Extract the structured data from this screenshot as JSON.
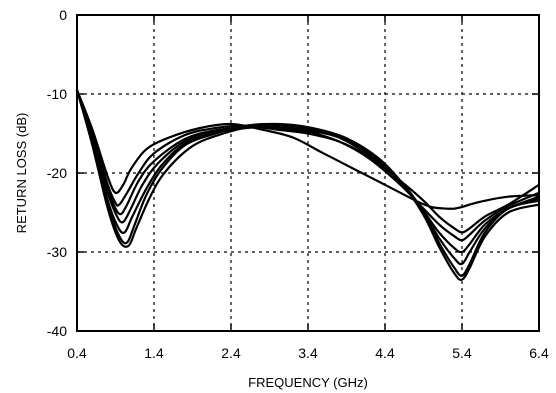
{
  "chart_data": {
    "type": "line",
    "xlabel": "FREQUENCY (GHz)",
    "ylabel": "RETURN LOSS (dB)",
    "xlim": [
      0.4,
      6.4
    ],
    "ylim": [
      -40,
      0
    ],
    "xticks": [
      "0.4",
      "1.4",
      "2.4",
      "3.4",
      "4.4",
      "5.4",
      "6.4"
    ],
    "yticks": [
      "0",
      "-10",
      "-20",
      "-30",
      "-40"
    ],
    "grid": "dashed",
    "series": [
      {
        "x": [
          0.4,
          0.6,
          0.8,
          0.9,
          1.0,
          1.1,
          1.3,
          1.6,
          2.0,
          2.4,
          2.8,
          3.2,
          3.6,
          4.0,
          4.4,
          4.8,
          5.0,
          5.2,
          5.3,
          5.4,
          5.5,
          5.7,
          6.0,
          6.4
        ],
        "y": [
          -9.5,
          -14.5,
          -20.5,
          -22.5,
          -21.5,
          -19.5,
          -17.0,
          -15.5,
          -14.3,
          -13.8,
          -14.5,
          -15.5,
          -17.5,
          -19.5,
          -21.5,
          -23.5,
          -24.3,
          -24.5,
          -24.5,
          -24.3,
          -24.0,
          -23.5,
          -23.0,
          -22.8
        ]
      },
      {
        "x": [
          0.4,
          0.6,
          0.8,
          0.9,
          0.95,
          1.05,
          1.2,
          1.4,
          1.8,
          2.2,
          2.6,
          3.0,
          3.4,
          3.8,
          4.2,
          4.6,
          4.9,
          5.1,
          5.3,
          5.4,
          5.5,
          5.7,
          6.0,
          6.4
        ],
        "y": [
          -9.5,
          -15.0,
          -21.5,
          -23.8,
          -24.0,
          -22.5,
          -20.0,
          -17.5,
          -15.2,
          -14.3,
          -14.0,
          -14.5,
          -15.0,
          -16.0,
          -18.0,
          -21.0,
          -23.5,
          -25.5,
          -27.0,
          -27.5,
          -27.0,
          -25.5,
          -24.0,
          -21.5
        ]
      },
      {
        "x": [
          0.4,
          0.6,
          0.8,
          0.9,
          0.97,
          1.05,
          1.2,
          1.4,
          1.8,
          2.2,
          2.6,
          3.0,
          3.4,
          3.8,
          4.2,
          4.6,
          4.9,
          5.1,
          5.3,
          5.4,
          5.5,
          5.7,
          6.0,
          6.4
        ],
        "y": [
          -9.5,
          -15.5,
          -22.0,
          -24.5,
          -25.2,
          -24.0,
          -21.0,
          -18.5,
          -15.7,
          -14.6,
          -14.2,
          -14.4,
          -14.8,
          -16.0,
          -18.2,
          -21.5,
          -24.5,
          -26.5,
          -28.0,
          -28.5,
          -27.8,
          -26.0,
          -24.2,
          -22.5
        ]
      },
      {
        "x": [
          0.4,
          0.6,
          0.8,
          0.92,
          1.0,
          1.1,
          1.25,
          1.45,
          1.8,
          2.2,
          2.6,
          3.0,
          3.4,
          3.8,
          4.2,
          4.6,
          4.9,
          5.1,
          5.3,
          5.4,
          5.5,
          5.7,
          6.0,
          6.4
        ],
        "y": [
          -9.5,
          -15.7,
          -22.5,
          -25.5,
          -26.2,
          -24.5,
          -21.5,
          -18.8,
          -16.0,
          -14.8,
          -14.3,
          -14.2,
          -14.6,
          -15.5,
          -17.8,
          -21.0,
          -24.8,
          -27.5,
          -29.5,
          -30.0,
          -29.0,
          -26.5,
          -24.5,
          -23.0
        ]
      },
      {
        "x": [
          0.4,
          0.6,
          0.8,
          0.93,
          1.02,
          1.12,
          1.3,
          1.5,
          1.8,
          2.2,
          2.6,
          3.0,
          3.4,
          3.8,
          4.2,
          4.6,
          4.9,
          5.1,
          5.3,
          5.4,
          5.5,
          5.7,
          6.0,
          6.4
        ],
        "y": [
          -9.5,
          -16.0,
          -23.5,
          -26.8,
          -27.5,
          -25.5,
          -22.0,
          -19.0,
          -16.3,
          -14.9,
          -14.2,
          -14.0,
          -14.4,
          -15.5,
          -17.8,
          -21.2,
          -25.0,
          -28.2,
          -30.8,
          -31.5,
          -30.0,
          -27.0,
          -24.5,
          -23.2
        ]
      },
      {
        "x": [
          0.4,
          0.6,
          0.8,
          0.95,
          1.05,
          1.15,
          1.3,
          1.5,
          1.8,
          2.2,
          2.6,
          3.0,
          3.4,
          3.8,
          4.2,
          4.6,
          4.9,
          5.1,
          5.3,
          5.4,
          5.5,
          5.7,
          6.0,
          6.4
        ],
        "y": [
          -9.5,
          -16.2,
          -24.0,
          -28.0,
          -28.8,
          -26.5,
          -22.8,
          -19.5,
          -16.5,
          -15.0,
          -14.0,
          -13.8,
          -14.2,
          -15.3,
          -17.5,
          -21.0,
          -25.0,
          -28.8,
          -32.0,
          -33.0,
          -31.5,
          -27.5,
          -24.5,
          -23.5
        ]
      },
      {
        "x": [
          0.4,
          0.6,
          0.8,
          0.95,
          1.07,
          1.17,
          1.35,
          1.55,
          1.9,
          2.3,
          2.7,
          3.1,
          3.5,
          3.9,
          4.3,
          4.6,
          4.9,
          5.1,
          5.3,
          5.4,
          5.5,
          5.7,
          6.0,
          6.4
        ],
        "y": [
          -9.5,
          -16.5,
          -24.5,
          -28.6,
          -29.2,
          -27.0,
          -23.0,
          -19.8,
          -16.6,
          -15.0,
          -14.1,
          -13.9,
          -14.4,
          -15.6,
          -18.0,
          -21.0,
          -25.3,
          -29.3,
          -32.7,
          -33.5,
          -32.0,
          -28.0,
          -25.0,
          -24.0
        ]
      }
    ]
  }
}
